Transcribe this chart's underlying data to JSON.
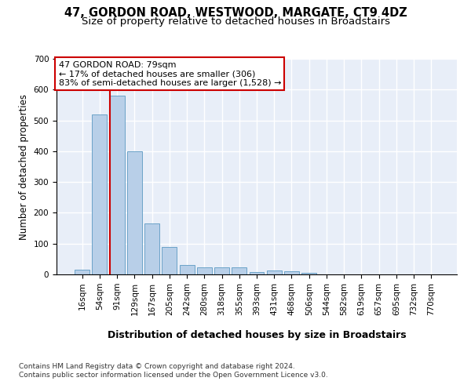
{
  "title": "47, GORDON ROAD, WESTWOOD, MARGATE, CT9 4DZ",
  "subtitle": "Size of property relative to detached houses in Broadstairs",
  "xlabel": "Distribution of detached houses by size in Broadstairs",
  "ylabel": "Number of detached properties",
  "categories": [
    "16sqm",
    "54sqm",
    "91sqm",
    "129sqm",
    "167sqm",
    "205sqm",
    "242sqm",
    "280sqm",
    "318sqm",
    "355sqm",
    "393sqm",
    "431sqm",
    "468sqm",
    "506sqm",
    "544sqm",
    "582sqm",
    "619sqm",
    "657sqm",
    "695sqm",
    "732sqm",
    "770sqm"
  ],
  "values": [
    15,
    520,
    580,
    400,
    165,
    88,
    30,
    22,
    22,
    23,
    8,
    13,
    10,
    5,
    0,
    0,
    0,
    0,
    0,
    0,
    0
  ],
  "bar_color": "#b8cfe8",
  "bar_edge_color": "#6ba3c8",
  "annotation_text": "47 GORDON ROAD: 79sqm\n← 17% of detached houses are smaller (306)\n83% of semi-detached houses are larger (1,528) →",
  "annotation_box_facecolor": "#ffffff",
  "annotation_box_edgecolor": "#cc0000",
  "vline_color": "#cc0000",
  "vline_x": 2.0,
  "ylim": [
    0,
    700
  ],
  "yticks": [
    0,
    100,
    200,
    300,
    400,
    500,
    600,
    700
  ],
  "background_color": "#e8eef8",
  "grid_color": "#ffffff",
  "title_fontsize": 10.5,
  "subtitle_fontsize": 9.5,
  "xlabel_fontsize": 9,
  "ylabel_fontsize": 8.5,
  "tick_fontsize": 7.5,
  "annotation_fontsize": 8,
  "footer_line1": "Contains HM Land Registry data © Crown copyright and database right 2024.",
  "footer_line2": "Contains public sector information licensed under the Open Government Licence v3.0.",
  "footer_fontsize": 6.5
}
